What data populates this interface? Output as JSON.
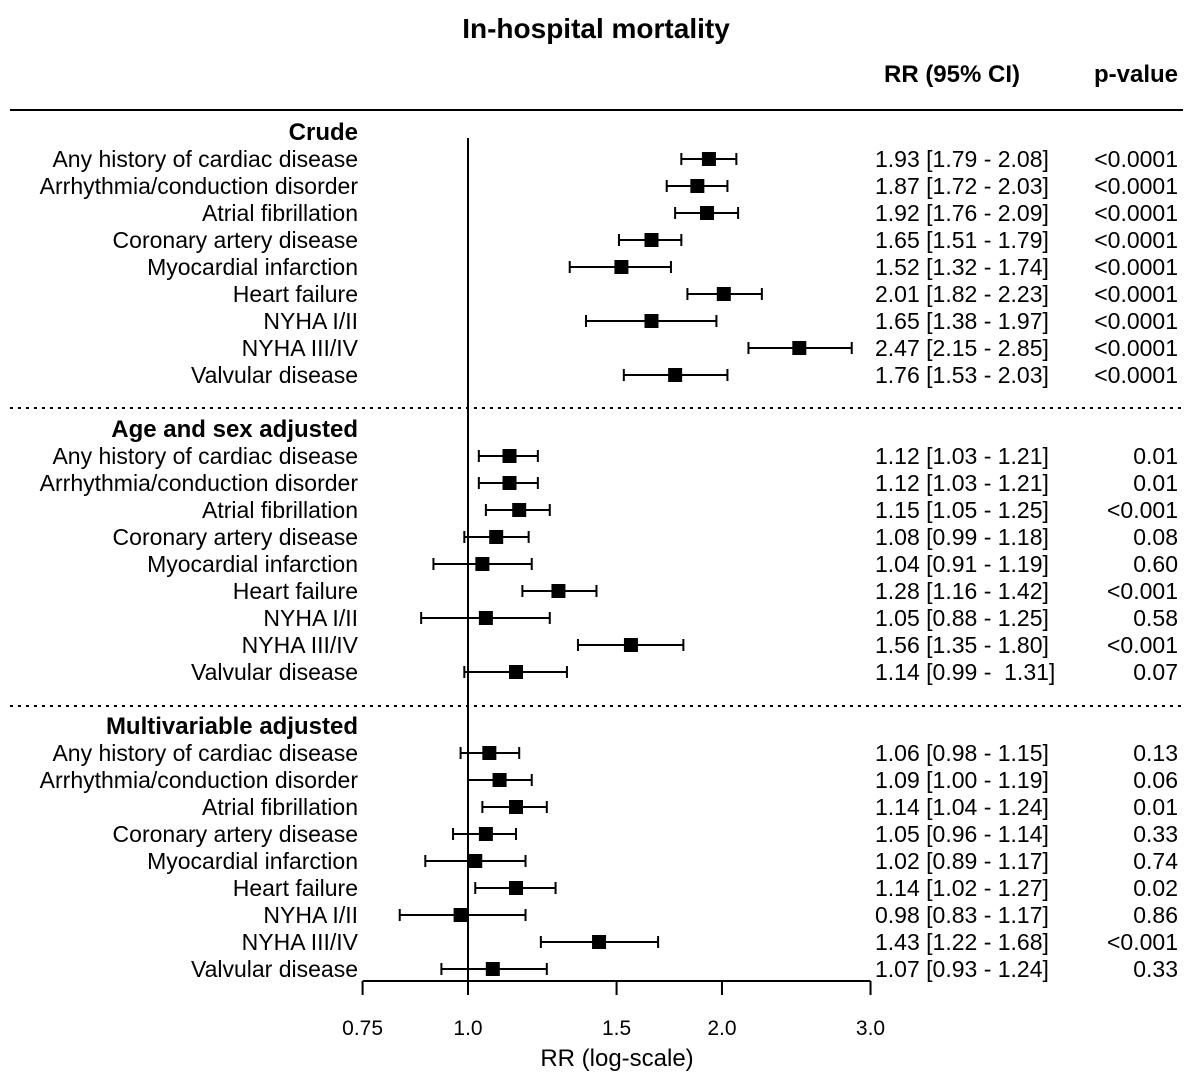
{
  "chart_data": {
    "type": "forest",
    "title": "In-hospital mortality",
    "columns": {
      "estimate": "RR (95% CI)",
      "pvalue": "p-value"
    },
    "xlabel": "RR (log-scale)",
    "xscale": "log",
    "xlim": [
      0.75,
      3.0
    ],
    "xticks": [
      {
        "value": 0.75,
        "label": "0.75"
      },
      {
        "value": 1.0,
        "label": "1.0"
      },
      {
        "value": 1.5,
        "label": "1.5"
      },
      {
        "value": 2.0,
        "label": "2.0"
      },
      {
        "value": 3.0,
        "label": "3.0"
      }
    ],
    "reference_line": 1.0,
    "groups": [
      {
        "name": "Crude",
        "rows": [
          {
            "label": "Any history of cardiac disease",
            "rr": 1.93,
            "lo": 1.79,
            "hi": 2.08,
            "ci_text": "1.93 [1.79 - 2.08]",
            "p": "<0.0001"
          },
          {
            "label": "Arrhythmia/conduction disorder",
            "rr": 1.87,
            "lo": 1.72,
            "hi": 2.03,
            "ci_text": "1.87 [1.72 - 2.03]",
            "p": "<0.0001"
          },
          {
            "label": "Atrial fibrillation",
            "rr": 1.92,
            "lo": 1.76,
            "hi": 2.09,
            "ci_text": "1.92 [1.76 - 2.09]",
            "p": "<0.0001"
          },
          {
            "label": "Coronary artery disease",
            "rr": 1.65,
            "lo": 1.51,
            "hi": 1.79,
            "ci_text": "1.65 [1.51 - 1.79]",
            "p": "<0.0001"
          },
          {
            "label": "Myocardial infarction",
            "rr": 1.52,
            "lo": 1.32,
            "hi": 1.74,
            "ci_text": "1.52 [1.32 - 1.74]",
            "p": "<0.0001"
          },
          {
            "label": "Heart failure",
            "rr": 2.01,
            "lo": 1.82,
            "hi": 2.23,
            "ci_text": "2.01 [1.82 - 2.23]",
            "p": "<0.0001"
          },
          {
            "label": "NYHA I/II",
            "rr": 1.65,
            "lo": 1.38,
            "hi": 1.97,
            "ci_text": "1.65 [1.38 - 1.97]",
            "p": "<0.0001"
          },
          {
            "label": "NYHA III/IV",
            "rr": 2.47,
            "lo": 2.15,
            "hi": 2.85,
            "ci_text": "2.47 [2.15 - 2.85]",
            "p": "<0.0001"
          },
          {
            "label": "Valvular disease",
            "rr": 1.76,
            "lo": 1.53,
            "hi": 2.03,
            "ci_text": "1.76 [1.53 - 2.03]",
            "p": "<0.0001"
          }
        ]
      },
      {
        "name": "Age and sex adjusted",
        "rows": [
          {
            "label": "Any history of cardiac disease",
            "rr": 1.12,
            "lo": 1.03,
            "hi": 1.21,
            "ci_text": "1.12 [1.03 - 1.21]",
            "p": "0.01"
          },
          {
            "label": "Arrhythmia/conduction disorder",
            "rr": 1.12,
            "lo": 1.03,
            "hi": 1.21,
            "ci_text": "1.12 [1.03 - 1.21]",
            "p": "0.01"
          },
          {
            "label": "Atrial fibrillation",
            "rr": 1.15,
            "lo": 1.05,
            "hi": 1.25,
            "ci_text": "1.15 [1.05 - 1.25]",
            "p": "<0.001"
          },
          {
            "label": "Coronary artery disease",
            "rr": 1.08,
            "lo": 0.99,
            "hi": 1.18,
            "ci_text": "1.08 [0.99 - 1.18]",
            "p": "0.08"
          },
          {
            "label": "Myocardial infarction",
            "rr": 1.04,
            "lo": 0.91,
            "hi": 1.19,
            "ci_text": "1.04 [0.91 - 1.19]",
            "p": "0.60"
          },
          {
            "label": "Heart failure",
            "rr": 1.28,
            "lo": 1.16,
            "hi": 1.42,
            "ci_text": "1.28 [1.16 - 1.42]",
            "p": "<0.001"
          },
          {
            "label": "NYHA I/II",
            "rr": 1.05,
            "lo": 0.88,
            "hi": 1.25,
            "ci_text": "1.05 [0.88 - 1.25]",
            "p": "0.58"
          },
          {
            "label": "NYHA III/IV",
            "rr": 1.56,
            "lo": 1.35,
            "hi": 1.8,
            "ci_text": "1.56 [1.35 - 1.80]",
            "p": "<0.001"
          },
          {
            "label": "Valvular disease",
            "rr": 1.14,
            "lo": 0.99,
            "hi": 1.31,
            "ci_text": "1.14 [0.99 -  1.31]",
            "p": "0.07"
          }
        ]
      },
      {
        "name": "Multivariable adjusted",
        "rows": [
          {
            "label": "Any history of cardiac disease",
            "rr": 1.06,
            "lo": 0.98,
            "hi": 1.15,
            "ci_text": "1.06 [0.98 - 1.15]",
            "p": "0.13"
          },
          {
            "label": "Arrhythmia/conduction disorder",
            "rr": 1.09,
            "lo": 1.0,
            "hi": 1.19,
            "ci_text": "1.09 [1.00 - 1.19]",
            "p": "0.06"
          },
          {
            "label": "Atrial fibrillation",
            "rr": 1.14,
            "lo": 1.04,
            "hi": 1.24,
            "ci_text": "1.14 [1.04 - 1.24]",
            "p": "0.01"
          },
          {
            "label": "Coronary artery disease",
            "rr": 1.05,
            "lo": 0.96,
            "hi": 1.14,
            "ci_text": "1.05 [0.96 - 1.14]",
            "p": "0.33"
          },
          {
            "label": "Myocardial infarction",
            "rr": 1.02,
            "lo": 0.89,
            "hi": 1.17,
            "ci_text": "1.02 [0.89 - 1.17]",
            "p": "0.74"
          },
          {
            "label": "Heart failure",
            "rr": 1.14,
            "lo": 1.02,
            "hi": 1.27,
            "ci_text": "1.14 [1.02 - 1.27]",
            "p": "0.02"
          },
          {
            "label": "NYHA I/II",
            "rr": 0.98,
            "lo": 0.83,
            "hi": 1.17,
            "ci_text": "0.98 [0.83 - 1.17]",
            "p": "0.86"
          },
          {
            "label": "NYHA III/IV",
            "rr": 1.43,
            "lo": 1.22,
            "hi": 1.68,
            "ci_text": "1.43 [1.22 - 1.68]",
            "p": "<0.001"
          },
          {
            "label": "Valvular disease",
            "rr": 1.07,
            "lo": 0.93,
            "hi": 1.24,
            "ci_text": "1.07 [0.93 - 1.24]",
            "p": "0.33"
          }
        ]
      }
    ]
  }
}
